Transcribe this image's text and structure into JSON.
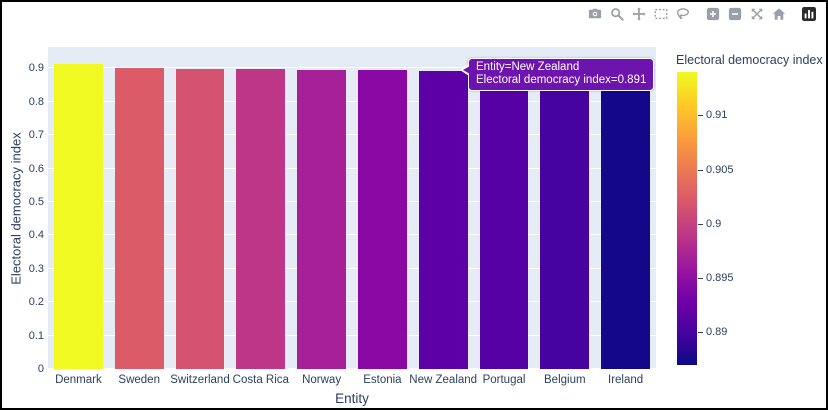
{
  "theme": {
    "plot_bg": "#e5ecf6",
    "paper_bg": "#ffffff",
    "text_color": "#2a3f5f",
    "grid_color": "#ffffff",
    "modebar_icon_color": "#9a9fa8",
    "modebar_logo_color": "#2b2b2b"
  },
  "modebar": {
    "icons": [
      {
        "name": "camera",
        "group_start": false
      },
      {
        "name": "zoom",
        "group_start": false
      },
      {
        "name": "pan",
        "group_start": false
      },
      {
        "name": "box-select",
        "group_start": false
      },
      {
        "name": "lasso",
        "group_start": false
      },
      {
        "name": "zoom-in",
        "group_start": true
      },
      {
        "name": "zoom-out",
        "group_start": false
      },
      {
        "name": "autoscale",
        "group_start": false
      },
      {
        "name": "reset-home",
        "group_start": false
      },
      {
        "name": "plotly-logo",
        "group_start": true
      }
    ]
  },
  "chart_data": {
    "type": "bar",
    "title": "",
    "xlabel": "Entity",
    "ylabel": "Electoral democracy index",
    "categories": [
      "Denmark",
      "Sweden",
      "Switzerland",
      "Costa Rica",
      "Norway",
      "Estonia",
      "New Zealand",
      "Portugal",
      "Belgium",
      "Ireland"
    ],
    "values": [
      0.914,
      0.9,
      0.899,
      0.897,
      0.896,
      0.894,
      0.891,
      0.89,
      0.889,
      0.887
    ],
    "bar_colors": [
      "#f0f921",
      "#db5c68",
      "#d4536e",
      "#bd3786",
      "#a62098",
      "#8a09a5",
      "#5c01a6",
      "#5601a4",
      "#46039f",
      "#150789"
    ],
    "ylim": [
      0,
      0.964
    ],
    "ytick_values": [
      0,
      0.1,
      0.2,
      0.3,
      0.4,
      0.5,
      0.6,
      0.7,
      0.8,
      0.9
    ],
    "ytick_labels": [
      "0",
      "0.1",
      "0.2",
      "0.3",
      "0.4",
      "0.5",
      "0.6",
      "0.7",
      "0.8",
      "0.9"
    ],
    "grid": true,
    "legend": "none",
    "colorbar": {
      "title": "Electoral democracy index",
      "range": [
        0.887,
        0.914
      ],
      "tick_values": [
        0.91,
        0.905,
        0.9,
        0.895,
        0.89
      ],
      "tick_labels": [
        "0.91",
        "0.905",
        "0.9",
        "0.895",
        "0.89"
      ],
      "colormap": "plasma",
      "gradient_stops": [
        "#0d0887",
        "#46039f",
        "#7201a8",
        "#9c179e",
        "#bd3786",
        "#d8576b",
        "#ed7953",
        "#fb9f3a",
        "#fdca26",
        "#f0f921"
      ]
    }
  },
  "tooltip": {
    "line1": "Entity=New Zealand",
    "line2": "Electoral democracy index=0.891",
    "bg": "#6e14ae"
  }
}
